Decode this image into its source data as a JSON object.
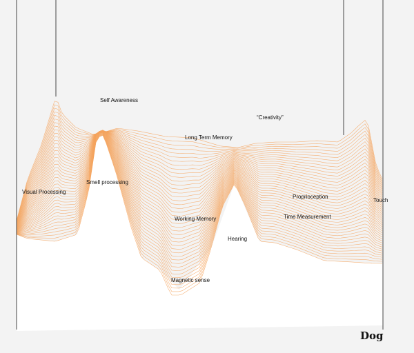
{
  "title": "Dog",
  "labels": {
    "self_awareness": "Self Awareness",
    "creativity": "“Creativity”",
    "long_term_memory": "Long Term Memory",
    "visual_processing": "Visual Processing",
    "smell_processing": "Smell processing",
    "proprioception": "Proprioception",
    "touch": "Touch",
    "working_memory": "Working Memory",
    "time_measurement": "Time Measurement",
    "hearing": "Hearing",
    "magnetic_sense": "Magnetic sense"
  },
  "colors": {
    "background": "#f3f3f3",
    "base": "#ffffff",
    "stroke": "#f4a35d",
    "pole": "#444444"
  }
}
